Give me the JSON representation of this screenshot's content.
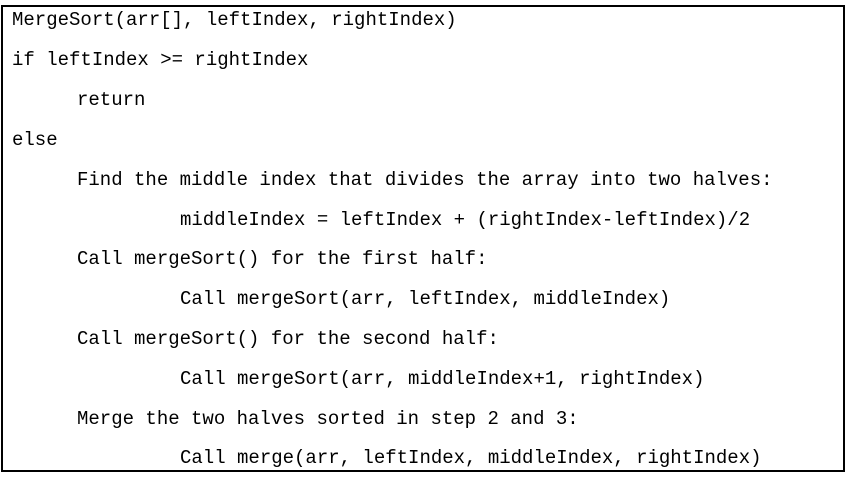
{
  "code": {
    "lines": [
      "MergeSort(arr[], leftIndex, rightIndex)",
      "if leftIndex >= rightIndex",
      "return",
      "else",
      "Find the middle index that divides the array into two halves:",
      "middleIndex = leftIndex + (rightIndex-leftIndex)/2",
      "Call mergeSort() for the first half:",
      "Call mergeSort(arr, leftIndex, middleIndex)",
      "Call mergeSort() for the second half:",
      "Call mergeSort(arr, middleIndex+1, rightIndex)",
      "Merge the two halves sorted in step 2 and 3:",
      "Call merge(arr, leftIndex, middleIndex, rightIndex)"
    ]
  }
}
